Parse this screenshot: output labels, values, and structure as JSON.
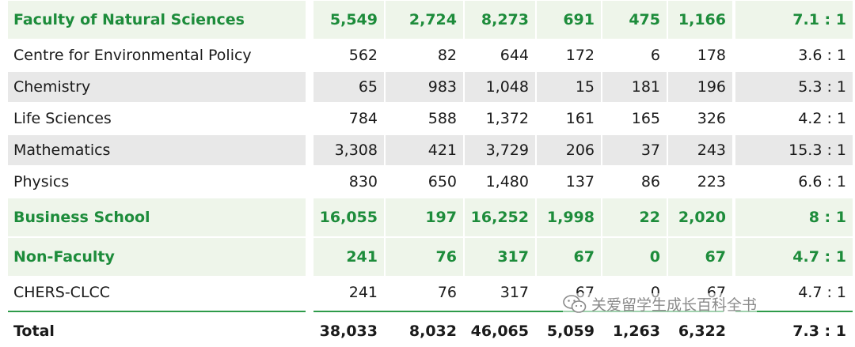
{
  "rows": [
    {
      "type": "faculty",
      "name": "Faculty of Natural Sciences",
      "values": [
        "5,549",
        "2,724",
        "8,273",
        "691",
        "475",
        "1,166",
        "7.1 : 1"
      ]
    },
    {
      "type": "dept",
      "name": "Centre for Environmental Policy",
      "values": [
        "562",
        "82",
        "644",
        "172",
        "6",
        "178",
        "3.6 : 1"
      ]
    },
    {
      "type": "dept-grey",
      "name": "Chemistry",
      "values": [
        "65",
        "983",
        "1,048",
        "15",
        "181",
        "196",
        "5.3 : 1"
      ]
    },
    {
      "type": "dept",
      "name": "Life Sciences",
      "values": [
        "784",
        "588",
        "1,372",
        "161",
        "165",
        "326",
        "4.2 : 1"
      ]
    },
    {
      "type": "dept-grey",
      "name": "Mathematics",
      "values": [
        "3,308",
        "421",
        "3,729",
        "206",
        "37",
        "243",
        "15.3 : 1"
      ]
    },
    {
      "type": "dept",
      "name": "Physics",
      "values": [
        "830",
        "650",
        "1,480",
        "137",
        "86",
        "223",
        "6.6 : 1"
      ]
    },
    {
      "type": "faculty",
      "name": "Business School",
      "values": [
        "16,055",
        "197",
        "16,252",
        "1,998",
        "22",
        "2,020",
        "8 : 1"
      ]
    },
    {
      "type": "faculty",
      "name": "Non-Faculty",
      "values": [
        "241",
        "76",
        "317",
        "67",
        "0",
        "67",
        "4.7 : 1"
      ]
    },
    {
      "type": "dept",
      "name": "CHERS-CLCC",
      "values": [
        "241",
        "76",
        "317",
        "67",
        "0",
        "67",
        "4.7 : 1"
      ]
    },
    {
      "type": "total",
      "name": "Total",
      "values": [
        "38,033",
        "8,032",
        "46,065",
        "5,059",
        "1,263",
        "6,322",
        "7.3 : 1"
      ]
    }
  ],
  "watermark": {
    "text": "关爱留学生成长百科全书",
    "icon": "wechat-icon"
  },
  "colors": {
    "accent_green": "#1d8c3b",
    "faculty_row_bg": "#eef5ea",
    "grey_row_bg": "#e8e8e8",
    "rule_green": "#2e9b4a"
  }
}
